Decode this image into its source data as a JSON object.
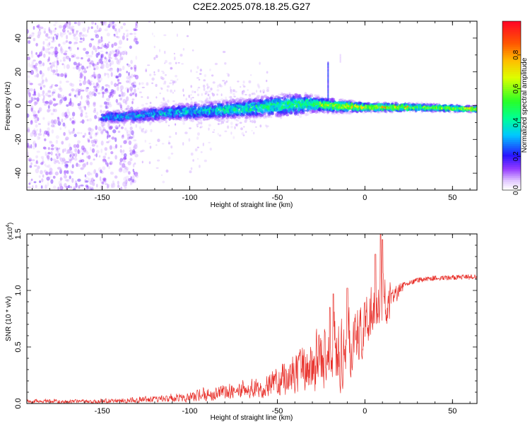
{
  "title": "C2E2.2025.078.18.25.G27",
  "colors": {
    "background": "#ffffff",
    "snr_line": "#e8302a",
    "axis": "#000000"
  },
  "chart_data": [
    {
      "type": "heatmap",
      "name": "spectrogram",
      "xlabel": "Height of straight line (km)",
      "ylabel": "Frequency (Hz)",
      "xlim": [
        -193,
        64
      ],
      "ylim": [
        -50,
        50
      ],
      "xticks": [
        -150,
        -100,
        -50,
        0,
        50
      ],
      "yticks": [
        -40,
        -20,
        0,
        20,
        40
      ],
      "grid": false,
      "colorbar": {
        "label": "Normalized spectral amplitude",
        "range": [
          0,
          1
        ],
        "ticks": [
          "0.0",
          "0.2",
          "0.4",
          "0.6",
          "0.8"
        ],
        "tick_values": [
          0.0,
          0.2,
          0.4,
          0.6,
          0.8
        ],
        "colormap": "rainbow (white-violet-blue-cyan-green-yellow-orange-red)"
      },
      "features": {
        "noise_region_x": [
          -193,
          -130
        ],
        "signal_band_start_x": -150,
        "signal_band_center_hz": [
          [
            -150,
            -7
          ],
          [
            -130,
            -6
          ],
          [
            -110,
            -4
          ],
          [
            -90,
            -3
          ],
          [
            -70,
            -2
          ],
          [
            -50,
            0
          ],
          [
            -30,
            1
          ],
          [
            -20,
            0
          ],
          [
            0,
            -1
          ],
          [
            30,
            -1
          ],
          [
            64,
            -2
          ]
        ],
        "signal_band_halfwidth_hz": [
          [
            -150,
            4
          ],
          [
            -100,
            6
          ],
          [
            -60,
            7
          ],
          [
            -40,
            8
          ],
          [
            -25,
            5
          ],
          [
            0,
            3
          ],
          [
            64,
            2
          ]
        ],
        "spike": {
          "x": -21,
          "freq_range": [
            3,
            26
          ]
        },
        "spike2": {
          "x": -14,
          "freq_range": [
            26,
            30
          ]
        }
      }
    },
    {
      "type": "line",
      "name": "snr",
      "xlabel": "Height of straight line (km)",
      "ylabel": "SNR (10 * v/v)",
      "y_multiplier": "(x10",
      "y_multiplier_exp": "4",
      "y_multiplier_close": ")",
      "xlim": [
        -193,
        64
      ],
      "ylim": [
        0,
        1.5
      ],
      "xticks": [
        -150,
        -100,
        -50,
        0,
        50
      ],
      "yticks": [
        "0.0",
        "0.5",
        "1.0",
        "1.5"
      ],
      "ytick_values": [
        0.0,
        0.5,
        1.0,
        1.5
      ],
      "grid": false,
      "series": [
        {
          "color": "#e8302a",
          "envelope_low": [
            [
              -193,
              0.0
            ],
            [
              -140,
              0.0
            ],
            [
              -100,
              0.01
            ],
            [
              -80,
              0.02
            ],
            [
              -60,
              0.04
            ],
            [
              -45,
              0.05
            ],
            [
              -30,
              0.05
            ],
            [
              -20,
              0.05
            ],
            [
              -15,
              0.05
            ],
            [
              -5,
              0.3
            ],
            [
              5,
              0.55
            ],
            [
              10,
              0.55
            ],
            [
              20,
              0.95
            ],
            [
              30,
              1.05
            ],
            [
              40,
              1.08
            ],
            [
              64,
              1.08
            ]
          ],
          "envelope_high": [
            [
              -193,
              0.05
            ],
            [
              -160,
              0.05
            ],
            [
              -140,
              0.06
            ],
            [
              -120,
              0.09
            ],
            [
              -100,
              0.13
            ],
            [
              -80,
              0.2
            ],
            [
              -60,
              0.28
            ],
            [
              -50,
              0.45
            ],
            [
              -40,
              0.58
            ],
            [
              -30,
              0.75
            ],
            [
              -20,
              0.9
            ],
            [
              -10,
              1.0
            ],
            [
              0,
              1.1
            ],
            [
              10,
              1.2
            ],
            [
              20,
              1.15
            ],
            [
              30,
              1.15
            ],
            [
              40,
              1.14
            ],
            [
              64,
              1.14
            ]
          ],
          "peaks": [
            [
              9,
              1.5
            ],
            [
              10,
              1.45
            ],
            [
              6,
              1.32
            ],
            [
              -18,
              0.97
            ],
            [
              -10,
              1.02
            ],
            [
              -20,
              0.85
            ]
          ]
        }
      ]
    }
  ]
}
